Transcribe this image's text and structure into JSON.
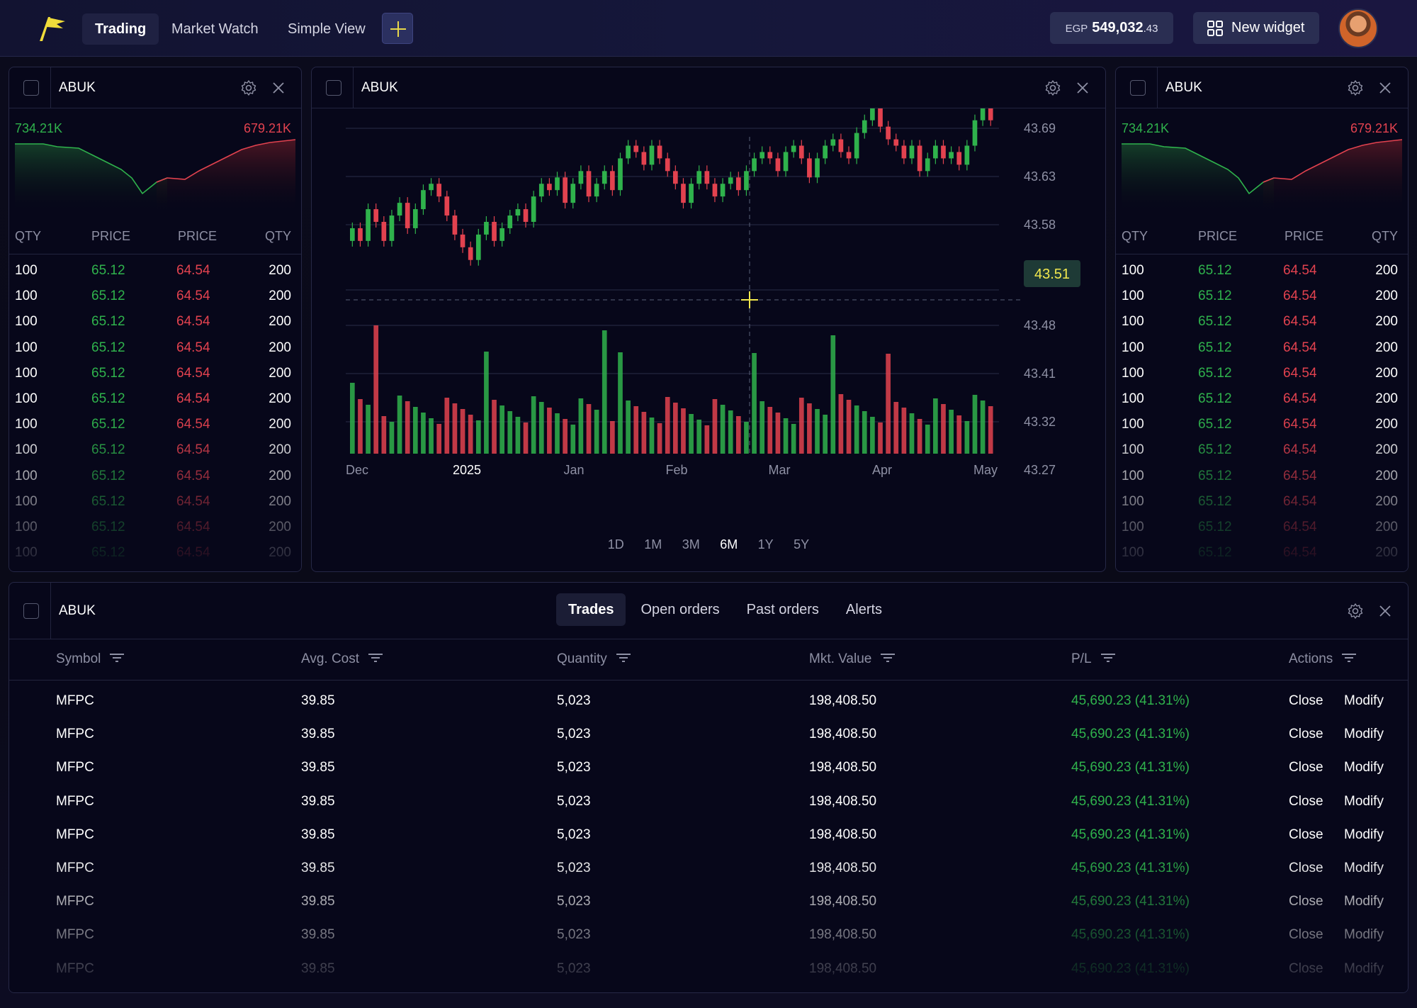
{
  "nav": {
    "tabs": [
      {
        "label": "Trading"
      },
      {
        "label": "Market Watch"
      },
      {
        "label": "Simple View"
      }
    ],
    "balance_currency": "EGP",
    "balance_amount": "549,032",
    "balance_decimals": ".43",
    "new_widget_label": "New widget"
  },
  "orderbook": {
    "title": "ABUK",
    "bid_total": "734.21K",
    "ask_total": "679.21K",
    "headers": [
      "QTY",
      "PRICE",
      "PRICE",
      "QTY"
    ],
    "rows": [
      [
        "100",
        "65.12",
        "64.54",
        "200"
      ],
      [
        "100",
        "65.12",
        "64.54",
        "200"
      ],
      [
        "100",
        "65.12",
        "64.54",
        "200"
      ],
      [
        "100",
        "65.12",
        "64.54",
        "200"
      ],
      [
        "100",
        "65.12",
        "64.54",
        "200"
      ],
      [
        "100",
        "65.12",
        "64.54",
        "200"
      ],
      [
        "100",
        "65.12",
        "64.54",
        "200"
      ],
      [
        "100",
        "65.12",
        "64.54",
        "200"
      ],
      [
        "100",
        "65.12",
        "64.54",
        "200"
      ],
      [
        "100",
        "65.12",
        "64.54",
        "200"
      ],
      [
        "100",
        "65.12",
        "64.54",
        "200"
      ],
      [
        "100",
        "65.12",
        "64.54",
        "200"
      ]
    ],
    "bid_color": "#2fb24c",
    "ask_color": "#e2424f"
  },
  "chart": {
    "title": "ABUK",
    "price_ticks": [
      "43.69",
      "43.63",
      "43.58",
      "43.51",
      "43.48",
      "43.41",
      "43.32",
      "43.27"
    ],
    "current_price": "43.51",
    "x_ticks": [
      "Dec",
      "2025",
      "Jan",
      "Feb",
      "Mar",
      "Apr",
      "May"
    ],
    "timeframes": [
      "1D",
      "1M",
      "3M",
      "6M",
      "1Y",
      "5Y"
    ],
    "active_timeframe": "6M",
    "up_color": "#2fb24c",
    "down_color": "#e2424f",
    "crosshair_color": "#f2e84e"
  },
  "chart_data": {
    "type": "candlestick",
    "y_axis_ticks": [
      43.27,
      43.32,
      43.41,
      43.48,
      43.51,
      43.58,
      43.63,
      43.69
    ],
    "x_axis_labels": [
      "Dec",
      "2025",
      "Jan",
      "Feb",
      "Mar",
      "Apr",
      "May"
    ],
    "current_price": 43.51,
    "closes": [
      43.49,
      43.47,
      43.52,
      43.5,
      43.47,
      43.51,
      43.53,
      43.49,
      43.52,
      43.55,
      43.56,
      43.54,
      43.51,
      43.48,
      43.46,
      43.44,
      43.48,
      43.5,
      43.47,
      43.49,
      43.51,
      43.52,
      43.5,
      43.54,
      43.56,
      43.55,
      43.57,
      43.53,
      43.56,
      43.58,
      43.54,
      43.56,
      43.58,
      43.55,
      43.6,
      43.62,
      43.61,
      43.59,
      43.62,
      43.6,
      43.58,
      43.56,
      43.53,
      43.56,
      43.58,
      43.56,
      43.54,
      43.56,
      43.57,
      43.55,
      43.58,
      43.6,
      43.61,
      43.6,
      43.58,
      43.61,
      43.62,
      43.6,
      43.57,
      43.6,
      43.62,
      43.63,
      43.61,
      43.6,
      43.64,
      43.66,
      43.68,
      43.65,
      43.63,
      43.62,
      43.6,
      43.62,
      43.58,
      43.6,
      43.62,
      43.6,
      43.61,
      43.59,
      43.62,
      43.66,
      43.68,
      43.66
    ],
    "up_color": "#2fb24c",
    "down_color": "#e2424f"
  },
  "trades": {
    "title": "ABUK",
    "tabs": [
      "Trades",
      "Open orders",
      "Past orders",
      "Alerts"
    ],
    "columns": [
      "Symbol",
      "Avg. Cost",
      "Quantity",
      "Mkt. Value",
      "P/L",
      "Actions"
    ],
    "close_label": "Close",
    "modify_label": "Modify",
    "rows": [
      {
        "symbol": "MFPC",
        "avg_cost": "39.85",
        "quantity": "5,023",
        "mkt_value": "198,408.50",
        "pl": "45,690.23 (41.31%)"
      },
      {
        "symbol": "MFPC",
        "avg_cost": "39.85",
        "quantity": "5,023",
        "mkt_value": "198,408.50",
        "pl": "45,690.23 (41.31%)"
      },
      {
        "symbol": "MFPC",
        "avg_cost": "39.85",
        "quantity": "5,023",
        "mkt_value": "198,408.50",
        "pl": "45,690.23 (41.31%)"
      },
      {
        "symbol": "MFPC",
        "avg_cost": "39.85",
        "quantity": "5,023",
        "mkt_value": "198,408.50",
        "pl": "45,690.23 (41.31%)"
      },
      {
        "symbol": "MFPC",
        "avg_cost": "39.85",
        "quantity": "5,023",
        "mkt_value": "198,408.50",
        "pl": "45,690.23 (41.31%)"
      },
      {
        "symbol": "MFPC",
        "avg_cost": "39.85",
        "quantity": "5,023",
        "mkt_value": "198,408.50",
        "pl": "45,690.23 (41.31%)"
      },
      {
        "symbol": "MFPC",
        "avg_cost": "39.85",
        "quantity": "5,023",
        "mkt_value": "198,408.50",
        "pl": "45,690.23 (41.31%)"
      },
      {
        "symbol": "MFPC",
        "avg_cost": "39.85",
        "quantity": "5,023",
        "mkt_value": "198,408.50",
        "pl": "45,690.23 (41.31%)"
      },
      {
        "symbol": "MFPC",
        "avg_cost": "39.85",
        "quantity": "5,023",
        "mkt_value": "198,408.50",
        "pl": "45,690.23 (41.31%)"
      }
    ]
  }
}
